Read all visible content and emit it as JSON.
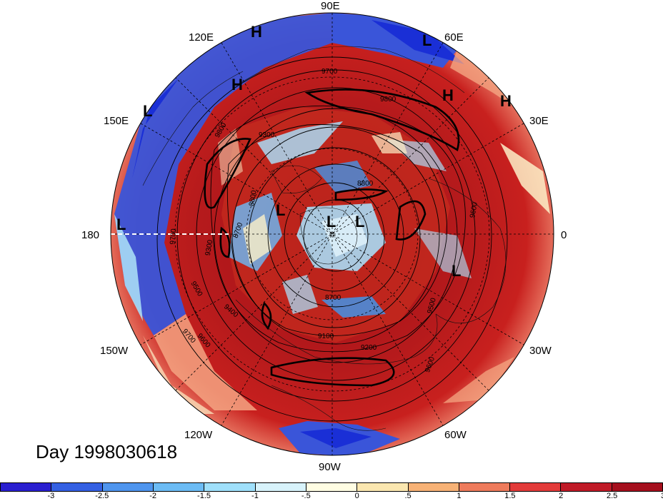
{
  "map": {
    "longitude_labels": [
      {
        "text": "90E",
        "name": "lon-label-90e"
      },
      {
        "text": "60E",
        "name": "lon-label-60e"
      },
      {
        "text": "30E",
        "name": "lon-label-30e"
      },
      {
        "text": "0",
        "name": "lon-label-0"
      },
      {
        "text": "30W",
        "name": "lon-label-30w"
      },
      {
        "text": "60W",
        "name": "lon-label-60w"
      },
      {
        "text": "90W",
        "name": "lon-label-90w"
      },
      {
        "text": "120W",
        "name": "lon-label-120w"
      },
      {
        "text": "150W",
        "name": "lon-label-150w"
      },
      {
        "text": "180",
        "name": "lon-label-180"
      },
      {
        "text": "150E",
        "name": "lon-label-150e"
      },
      {
        "text": "120E",
        "name": "lon-label-120e"
      }
    ],
    "pressure_markers": [
      "H",
      "L",
      "H",
      "L",
      "H",
      "H",
      "L",
      "L",
      "L",
      "L",
      "L"
    ],
    "contour_labels": [
      "9700",
      "9800",
      "9300",
      "8800",
      "9600",
      "9700",
      "9300",
      "9500",
      "9400",
      "9700",
      "9600",
      "8700",
      "8700",
      "9100",
      "9200",
      "9500",
      "9600",
      "8800",
      "9800"
    ],
    "colors": {
      "deep_red": "#a50f15",
      "red": "#d7191c",
      "orange": "#f4a582",
      "cream": "#fdf0c8",
      "light_blue": "#a9dcf5",
      "blue": "#4393e6",
      "deep_blue": "#1a2fd6"
    }
  },
  "day_label": "Day 1998030618",
  "colorbar": {
    "colors": [
      "#2a1fd0",
      "#3460e3",
      "#4f95ee",
      "#6cbcf5",
      "#9fe0fb",
      "#d8f3fb",
      "#fffde3",
      "#fbe7b0",
      "#f7b276",
      "#ee7b5c",
      "#e33b3a",
      "#c01a27",
      "#a50f1d"
    ],
    "ticks": [
      "-3",
      "-2.5",
      "-2",
      "-1.5",
      "-1",
      "-.5",
      "0",
      ".5",
      "1",
      "1.5",
      "2",
      "2.5",
      "3"
    ]
  }
}
